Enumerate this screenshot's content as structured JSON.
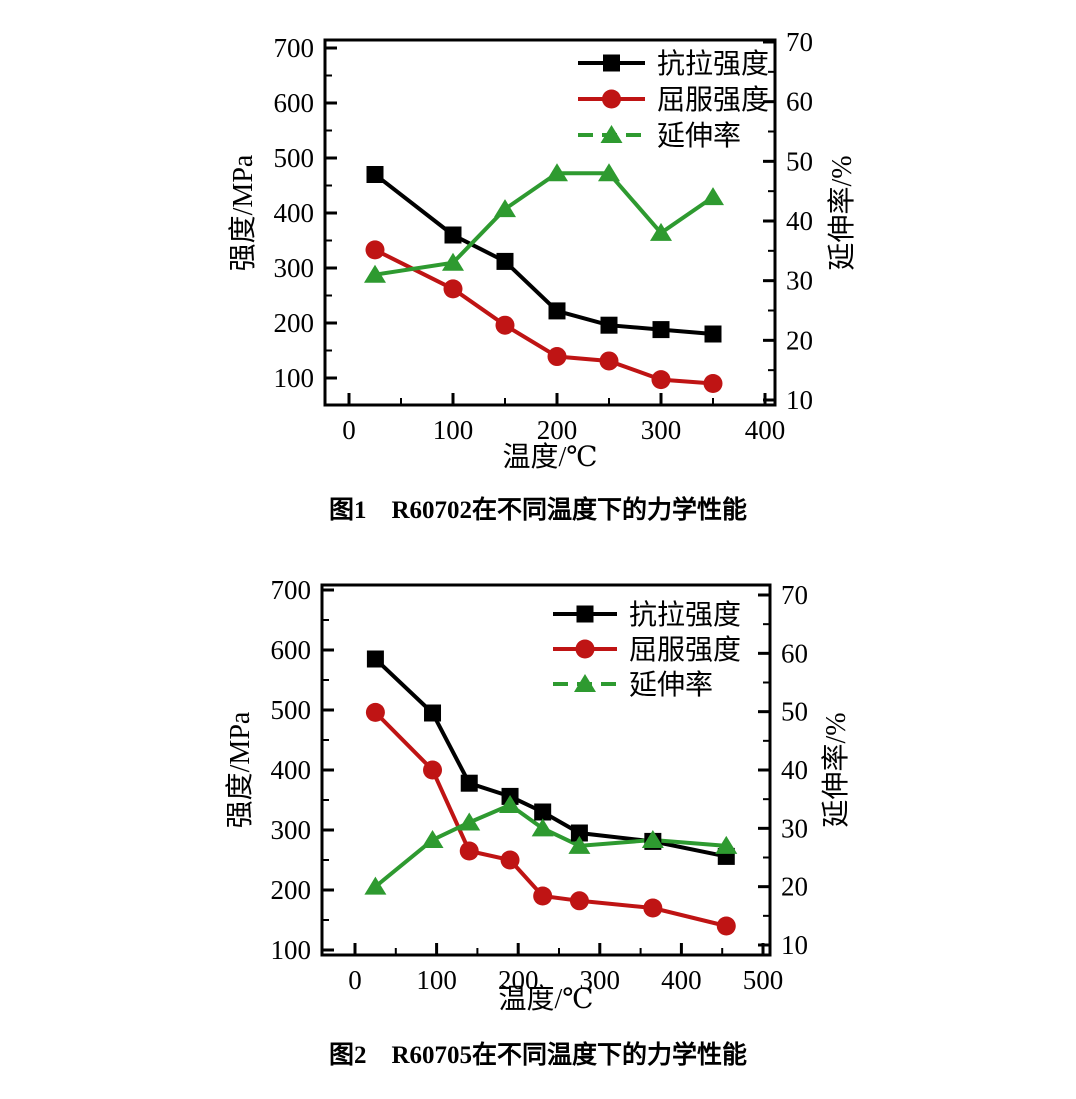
{
  "page": {
    "background": "#ffffff"
  },
  "chart_data": [
    {
      "type": "line",
      "caption": "图1　R60702在不同温度下的力学性能",
      "xlabel": "温度/℃",
      "ylabel_left": "强度/MPa",
      "ylabel_right": "延伸率/%",
      "legend_position": "top-right-inside",
      "grid": "off",
      "x_axis": {
        "min": 0,
        "max": 400,
        "tick_step": 100,
        "minor_step": 50,
        "tick_labels": [
          "0",
          "100",
          "200",
          "300",
          "400"
        ]
      },
      "y_left": {
        "min": 100,
        "max": 700,
        "tick_step": 100,
        "minor_step": 50,
        "tick_labels": [
          "100",
          "200",
          "300",
          "400",
          "500",
          "600",
          "700"
        ]
      },
      "y_right": {
        "min": 10,
        "max": 70,
        "tick_step": 10,
        "minor_step": 5,
        "tick_labels": [
          "10",
          "20",
          "30",
          "40",
          "50",
          "60",
          "70"
        ]
      },
      "x": [
        25,
        100,
        150,
        200,
        250,
        300,
        350
      ],
      "series": [
        {
          "name": "抗拉强度",
          "axis": "left",
          "color": "#000000",
          "marker": "square",
          "line": "solid",
          "legend_dash": false,
          "values": [
            470,
            360,
            312,
            222,
            196,
            188,
            180
          ]
        },
        {
          "name": "屈服强度",
          "axis": "left",
          "color": "#bf1414",
          "marker": "circle",
          "line": "solid",
          "legend_dash": false,
          "values": [
            333,
            262,
            196,
            139,
            131,
            97,
            90
          ]
        },
        {
          "name": "延伸率",
          "axis": "right",
          "color": "#2e9a30",
          "marker": "triangle",
          "line": "solid",
          "legend_dash": true,
          "values": [
            31,
            33,
            42,
            48,
            48,
            38,
            44
          ]
        }
      ]
    },
    {
      "type": "line",
      "caption": "图2　R60705在不同温度下的力学性能",
      "xlabel": "温度/℃",
      "ylabel_left": "强度/MPa",
      "ylabel_right": "延伸率/%",
      "legend_position": "top-right-inside",
      "grid": "off",
      "x_axis": {
        "min": 0,
        "max": 500,
        "tick_step": 100,
        "minor_step": 50,
        "tick_labels": [
          "0",
          "100",
          "200",
          "300",
          "400",
          "500"
        ]
      },
      "y_left": {
        "min": 100,
        "max": 700,
        "tick_step": 100,
        "minor_step": 50,
        "tick_labels": [
          "100",
          "200",
          "300",
          "400",
          "500",
          "600",
          "700"
        ]
      },
      "y_right": {
        "min": 10,
        "max": 70,
        "tick_step": 10,
        "minor_step": 5,
        "tick_labels": [
          "10",
          "20",
          "30",
          "40",
          "50",
          "60",
          "70"
        ]
      },
      "x": [
        25,
        95,
        140,
        190,
        230,
        275,
        365,
        455
      ],
      "series": [
        {
          "name": "抗拉强度",
          "axis": "left",
          "color": "#000000",
          "marker": "square",
          "line": "solid",
          "legend_dash": false,
          "values": [
            585,
            495,
            378,
            356,
            330,
            295,
            281,
            256
          ]
        },
        {
          "name": "屈服强度",
          "axis": "left",
          "color": "#bf1414",
          "marker": "circle",
          "line": "solid",
          "legend_dash": false,
          "values": [
            496,
            400,
            265,
            250,
            190,
            182,
            170,
            140
          ]
        },
        {
          "name": "延伸率",
          "axis": "right",
          "color": "#2e9a30",
          "marker": "triangle",
          "line": "solid",
          "legend_dash": true,
          "values": [
            20,
            28,
            31,
            34,
            30,
            27,
            28,
            27
          ]
        }
      ]
    }
  ]
}
